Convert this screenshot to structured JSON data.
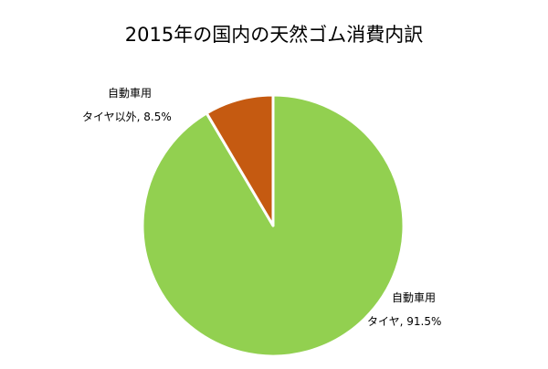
{
  "chart_data": {
    "type": "pie",
    "title": "2015年の国内の天然ゴム消費内訳",
    "slices": [
      {
        "name_line1": "自動車用",
        "name_line2": "タイヤ",
        "value": 91.5,
        "value_label": "91.5%",
        "color": "#92d050"
      },
      {
        "name_line1": "自動車用",
        "name_line2": "タイヤ以外",
        "value": 8.5,
        "value_label": "8.5%",
        "color": "#c55a11"
      }
    ],
    "start": "12 o'clock",
    "direction": "clockwise",
    "separator_color": "#ffffff"
  },
  "labels": {
    "tyre_line2": "タイヤ, 91.5%",
    "other_line2": "タイヤ以外, 8.5%"
  }
}
